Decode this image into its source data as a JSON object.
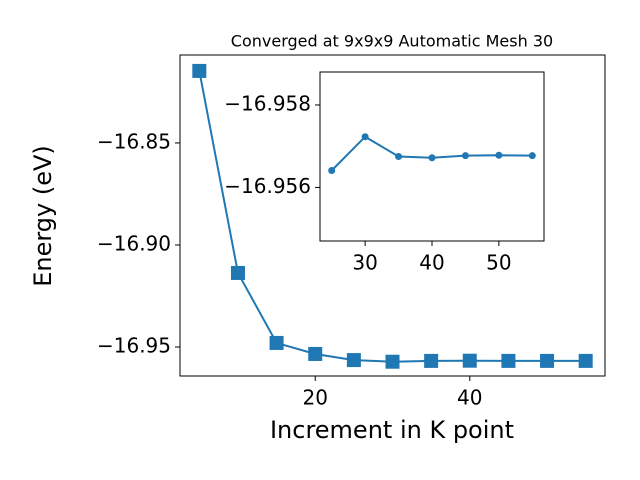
{
  "chart_data": [
    {
      "type": "line",
      "title": "Converged at 9x9x9 Automatic Mesh 30",
      "xlabel": "Increment in K point",
      "ylabel": "Energy (eV)",
      "x": [
        5,
        10,
        15,
        20,
        25,
        30,
        35,
        40,
        45,
        50,
        55
      ],
      "series": [
        {
          "color": "#1f77b4",
          "marker": "square",
          "values": [
            -16.8147,
            -16.9137,
            -16.948,
            -16.9534,
            -16.9564,
            -16.9572,
            -16.9568,
            -16.9567,
            -16.9568,
            -16.9568,
            -16.9568
          ]
        }
      ],
      "xlim": [
        2.5,
        57.5
      ],
      "ylim": [
        -16.9642,
        -16.8069
      ],
      "xticks": [
        20,
        40
      ],
      "yticks": [
        {
          "value": -16.95,
          "label": "−16.95"
        },
        {
          "value": -16.9,
          "label": "−16.90"
        },
        {
          "value": -16.85,
          "label": "−16.85"
        }
      ]
    },
    {
      "type": "line",
      "x": [
        25,
        30,
        35,
        40,
        45,
        50,
        55
      ],
      "series": [
        {
          "color": "#1f77b4",
          "marker": "circle",
          "values": [
            -16.95641,
            -16.95723,
            -16.95675,
            -16.95672,
            -16.95677,
            -16.95678,
            -16.95677
          ]
        }
      ],
      "xlim": [
        23.25,
        56.75
      ],
      "ylim": [
        -16.9547,
        -16.9588
      ],
      "xticks": [
        30,
        40,
        50
      ],
      "yticks": [
        {
          "value": -16.958,
          "label": "−16.958"
        },
        {
          "value": -16.956,
          "label": "−16.956"
        }
      ]
    }
  ]
}
